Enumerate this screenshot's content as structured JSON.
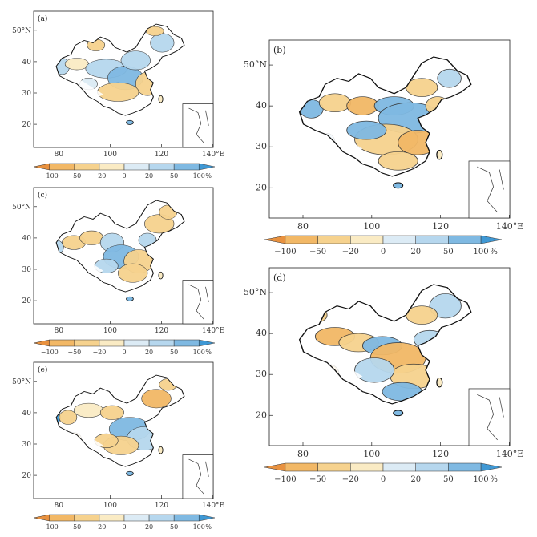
{
  "colorbar": {
    "levels": [
      "−100",
      "−50",
      "−20",
      "0",
      "20",
      "50",
      "100"
    ],
    "unit": "%",
    "colors": [
      "#e8913f",
      "#f2b866",
      "#f6d28e",
      "#faebc4",
      "#dcebf5",
      "#b6d7ee",
      "#7fb9e2",
      "#3f98d4"
    ]
  },
  "axes": {
    "lon_ticks": [
      "80",
      "100",
      "120",
      "140°E"
    ],
    "lat_ticks": [
      "50°N",
      "40",
      "30",
      "20"
    ]
  },
  "panels": [
    {
      "id": "a",
      "label": "(a)"
    },
    {
      "id": "b",
      "label": "(b)"
    },
    {
      "id": "c",
      "label": "(c)"
    },
    {
      "id": "d",
      "label": "(d)"
    },
    {
      "id": "e",
      "label": "(e)"
    }
  ]
}
